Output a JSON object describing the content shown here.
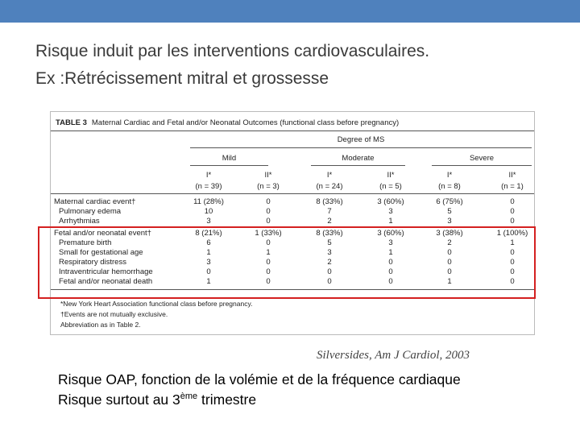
{
  "title": [
    "Risque induit par les interventions cardiovasculaires.",
    "Ex :Rétrécissement mitral et grossesse"
  ],
  "table": {
    "caption_label": "TABLE 3",
    "caption": "Maternal Cardiac and Fetal and/or Neonatal Outcomes (functional class before pregnancy)",
    "spanner": "Degree of MS",
    "groups": [
      "Mild",
      "Moderate",
      "Severe"
    ],
    "classes": [
      "I*",
      "II*",
      "I*",
      "II*",
      "I*",
      "II*"
    ],
    "n": [
      "(n = 39)",
      "(n = 3)",
      "(n = 24)",
      "(n = 5)",
      "(n = 8)",
      "(n = 1)"
    ],
    "rows": [
      [
        "Maternal cardiac event†",
        "11 (28%)",
        "0",
        "8 (33%)",
        "3 (60%)",
        "6 (75%)",
        "0"
      ],
      [
        "Pulmonary edema",
        "10",
        "0",
        "7",
        "3",
        "5",
        "0"
      ],
      [
        "Arrhythmias",
        "3",
        "0",
        "2",
        "1",
        "3",
        "0"
      ],
      [
        "Fetal and/or neonatal event†",
        "8 (21%)",
        "1 (33%)",
        "8 (33%)",
        "3 (60%)",
        "3 (38%)",
        "1 (100%)"
      ],
      [
        "Premature birth",
        "6",
        "0",
        "5",
        "3",
        "2",
        "1"
      ],
      [
        "Small for gestational age",
        "1",
        "1",
        "3",
        "1",
        "0",
        "0"
      ],
      [
        "Respiratory distress",
        "3",
        "0",
        "2",
        "0",
        "0",
        "0"
      ],
      [
        "Intraventricular hemorrhage",
        "0",
        "0",
        "0",
        "0",
        "0",
        "0"
      ],
      [
        "Fetal and/or neonatal death",
        "1",
        "0",
        "0",
        "0",
        "1",
        "0"
      ]
    ],
    "footnotes": [
      "*New York Heart Association functional class before pregnancy.",
      "†Events are not mutually exclusive.",
      "Abbreviation as in Table 2."
    ]
  },
  "citation": "Silversides, Am J Cardiol, 2003",
  "notes": [
    [
      "Risque OAP, fonction de la volémie et de la fréquence cardiaque"
    ],
    [
      "Risque surtout au 3",
      "ème",
      " trimestre"
    ]
  ]
}
